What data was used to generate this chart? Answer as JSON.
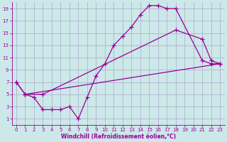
{
  "background_color": "#cce8e8",
  "grid_color": "#aaaacc",
  "line_color": "#990099",
  "marker": "+",
  "markersize": 4,
  "linewidth": 0.9,
  "markeredgewidth": 0.9,
  "xlabel": "Windchill (Refroidissement éolien,°C)",
  "xlabel_fontsize": 5.5,
  "tick_fontsize": 5.0,
  "xlim": [
    -0.5,
    23.5
  ],
  "ylim": [
    0,
    20
  ],
  "xticks": [
    0,
    1,
    2,
    3,
    4,
    5,
    6,
    7,
    8,
    9,
    10,
    11,
    12,
    13,
    14,
    15,
    16,
    17,
    18,
    19,
    20,
    21,
    22,
    23
  ],
  "yticks": [
    1,
    3,
    5,
    7,
    9,
    11,
    13,
    15,
    17,
    19
  ],
  "line1_x": [
    0,
    1,
    2,
    3,
    4,
    5,
    6,
    7,
    8,
    9,
    10,
    11,
    12,
    13,
    14,
    15,
    16,
    17,
    18,
    21,
    22,
    23
  ],
  "line1_y": [
    7,
    5,
    4.5,
    2.5,
    2.5,
    2.5,
    3,
    1,
    4.5,
    8,
    10,
    13,
    14.5,
    16,
    18,
    19.5,
    19.5,
    19,
    19,
    10.5,
    10,
    10
  ],
  "line2_x": [
    0,
    1,
    3,
    18,
    21,
    22,
    23
  ],
  "line2_y": [
    7,
    5,
    5,
    15.5,
    14,
    10.5,
    10
  ],
  "line3_x": [
    1,
    23
  ],
  "line3_y": [
    5,
    10
  ]
}
